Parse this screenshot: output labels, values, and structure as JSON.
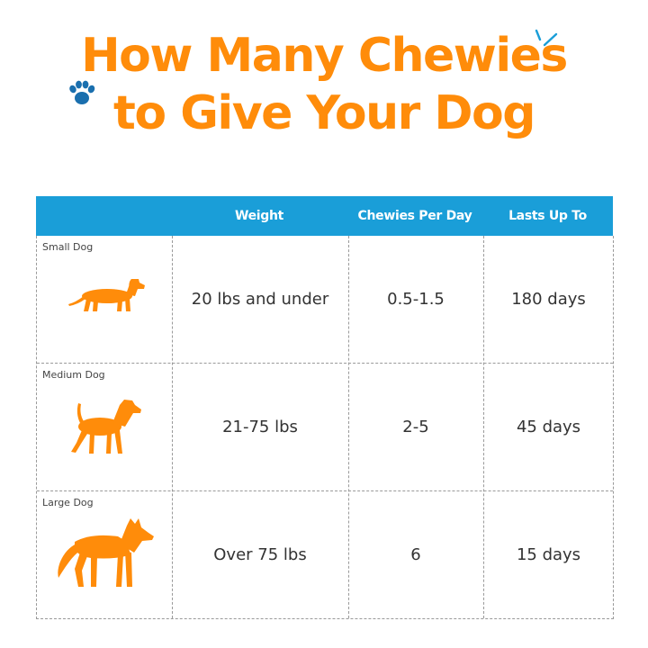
{
  "title": {
    "line1": "How Many Chewies",
    "line2": "to Give Your Dog"
  },
  "colors": {
    "title": "#ff8c0a",
    "header_bg": "#1a9ed8",
    "dog_icon": "#ff8c0a",
    "paw_icon": "#1a6fae",
    "text": "#333333",
    "grid_lines": "#9a9a9a"
  },
  "icons": {
    "decoration_left": "paw-print-icon",
    "decoration_right": "sparkle-icon"
  },
  "table": {
    "headers": [
      "",
      "Weight",
      "Chewies Per Day",
      "Lasts Up To"
    ],
    "rows": [
      {
        "size": "Small Dog",
        "icon": "dachshund-icon",
        "weight": "20 lbs and under",
        "chewies_per_day": "0.5-1.5",
        "lasts_up_to": "180 days"
      },
      {
        "size": "Medium Dog",
        "icon": "beagle-icon",
        "weight": "21-75 lbs",
        "chewies_per_day": "2-5",
        "lasts_up_to": "45 days"
      },
      {
        "size": "Large Dog",
        "icon": "husky-icon",
        "weight": "Over 75 lbs",
        "chewies_per_day": "6",
        "lasts_up_to": "15 days"
      }
    ]
  }
}
